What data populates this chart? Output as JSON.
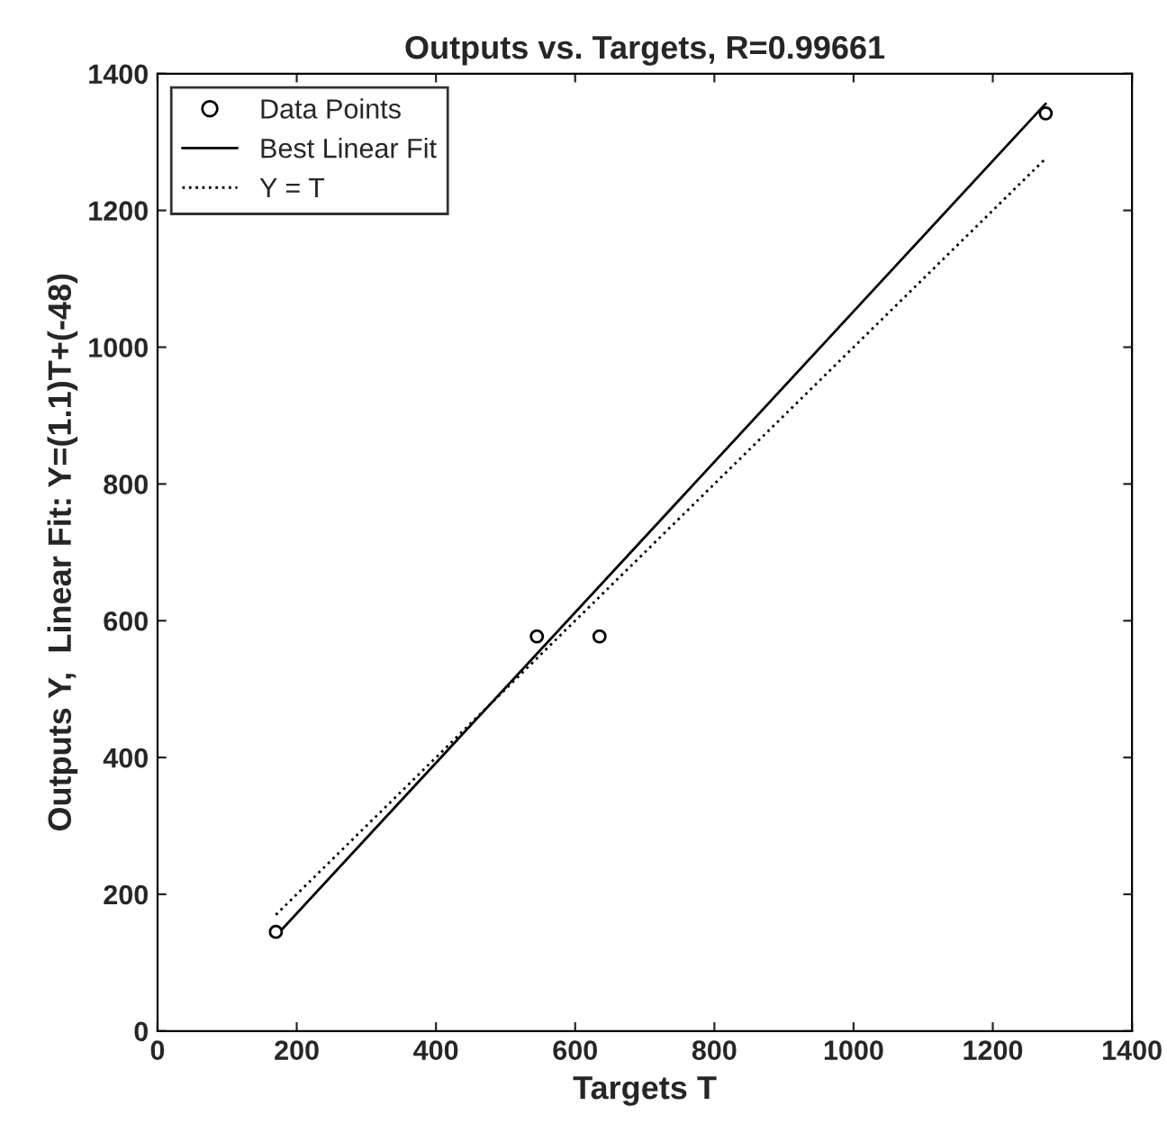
{
  "chart_data": {
    "type": "scatter",
    "title": "Outputs vs. Targets, R=0.99661",
    "xlabel": "Targets T",
    "ylabel": "Outputs Y,  Linear Fit: Y=(1.1)T+(-48)",
    "series": [
      {
        "name": "Data Points",
        "color": "#000000",
        "marker": "circle",
        "x": [
          170,
          545,
          635,
          1276
        ],
        "values": [
          145,
          577,
          577,
          1342
        ]
      },
      {
        "name": "Best Linear Fit",
        "type": "line",
        "color": "#000000",
        "line_style": "solid",
        "x": [
          170,
          1276
        ],
        "values": [
          139,
          1356
        ]
      },
      {
        "name": "Y = T",
        "type": "line",
        "color": "#000000",
        "line_style": "dotted",
        "x": [
          170,
          1276
        ],
        "values": [
          170,
          1276
        ]
      }
    ],
    "xlim": [
      0,
      1400
    ],
    "ylim": [
      0,
      1400
    ],
    "xticks": [
      0,
      200,
      400,
      600,
      800,
      1000,
      1200,
      1400
    ],
    "yticks": [
      0,
      200,
      400,
      600,
      800,
      1000,
      1200,
      1400
    ],
    "grid": false,
    "legend": "top left"
  }
}
